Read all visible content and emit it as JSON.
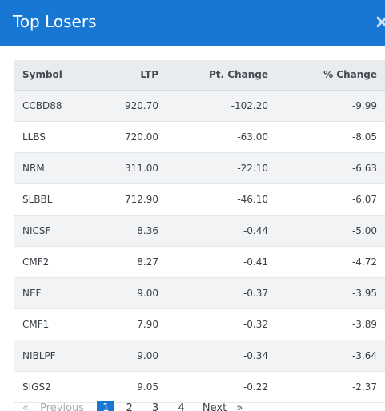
{
  "modal": {
    "title": "Top Losers",
    "close_icon": "×"
  },
  "table": {
    "headers": {
      "symbol": "Symbol",
      "ltp": "LTP",
      "pt_change": "Pt. Change",
      "pct_change": "% Change"
    },
    "rows": [
      {
        "symbol": "CCBD88",
        "ltp": "920.70",
        "pt_change": "-102.20",
        "pct_change": "-9.99"
      },
      {
        "symbol": "LLBS",
        "ltp": "720.00",
        "pt_change": "-63.00",
        "pct_change": "-8.05"
      },
      {
        "symbol": "NRM",
        "ltp": "311.00",
        "pt_change": "-22.10",
        "pct_change": "-6.63"
      },
      {
        "symbol": "SLBBL",
        "ltp": "712.90",
        "pt_change": "-46.10",
        "pct_change": "-6.07"
      },
      {
        "symbol": "NICSF",
        "ltp": "8.36",
        "pt_change": "-0.44",
        "pct_change": "-5.00"
      },
      {
        "symbol": "CMF2",
        "ltp": "8.27",
        "pt_change": "-0.41",
        "pct_change": "-4.72"
      },
      {
        "symbol": "NEF",
        "ltp": "9.00",
        "pt_change": "-0.37",
        "pct_change": "-3.95"
      },
      {
        "symbol": "CMF1",
        "ltp": "7.90",
        "pt_change": "-0.32",
        "pct_change": "-3.89"
      },
      {
        "symbol": "NIBLPF",
        "ltp": "9.00",
        "pt_change": "-0.34",
        "pct_change": "-3.64"
      },
      {
        "symbol": "SIGS2",
        "ltp": "9.05",
        "pt_change": "-0.22",
        "pct_change": "-2.37"
      }
    ]
  },
  "pagination": {
    "first_arrow": "«",
    "previous": "Previous",
    "pages": [
      "1",
      "2",
      "3",
      "4"
    ],
    "active_page": "1",
    "next": "Next",
    "last_arrow": "»"
  },
  "colors": {
    "header_blue": "#1877d2",
    "negative_red": "#e5343d"
  }
}
